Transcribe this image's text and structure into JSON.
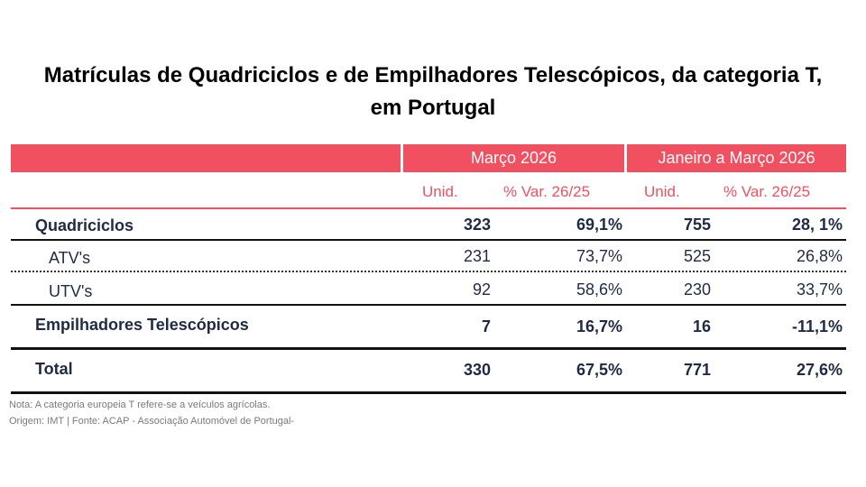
{
  "title": {
    "line1": "Matrículas de Quadriciclos e de Empilhadores Telescópicos, da categoria T,",
    "line2": "em Portugal"
  },
  "table": {
    "period_headers": {
      "march": "Março 2026",
      "ytd": "Janeiro a Março 2026"
    },
    "sub_headers": {
      "march_unid": "Unid.",
      "march_var": "% Var. 26/25",
      "ytd_unid": "Unid.",
      "ytd_var": "% Var. 26/25"
    },
    "rows": [
      {
        "label": "Quadriciclos",
        "m_unid": "323",
        "m_var": "69,1%",
        "y_unid": "755",
        "y_var": "28, 1%"
      },
      {
        "label": "ATV's",
        "m_unid": "231",
        "m_var": "73,7%",
        "y_unid": "525",
        "y_var": "26,8%"
      },
      {
        "label": "UTV's",
        "m_unid": "92",
        "m_var": "58,6%",
        "y_unid": "230",
        "y_var": "33,7%"
      },
      {
        "label": "Empilhadores Telescópicos",
        "m_unid": "7",
        "m_var": "16,7%",
        "y_unid": "16",
        "y_var": "-11,1%"
      },
      {
        "label": "Total",
        "m_unid": "330",
        "m_var": "67,5%",
        "y_unid": "771",
        "y_var": "27,6%"
      }
    ]
  },
  "notes": {
    "nota": "Nota: A categoria europeia T refere-se a veículos agrícolas.",
    "origem": "Origem: IMT | Fonte: ACAP - Associação Automóvel de Portugal-"
  },
  "colors": {
    "accent": "#f0505f",
    "text": "#1f2a44"
  }
}
